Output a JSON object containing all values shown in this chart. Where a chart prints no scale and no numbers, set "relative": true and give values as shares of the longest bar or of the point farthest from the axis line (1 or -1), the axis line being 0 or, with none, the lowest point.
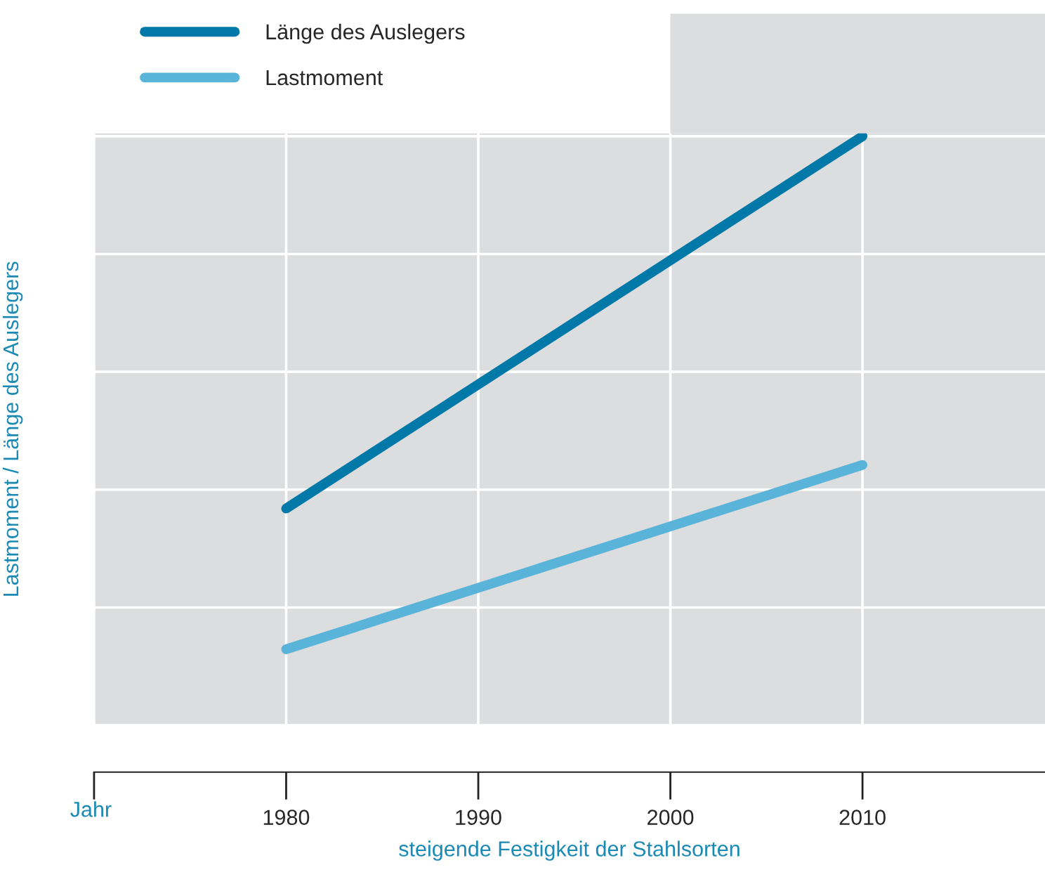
{
  "chart_data": {
    "type": "line",
    "relative": true,
    "xlabel": "steigende Festigkeit der Stahlsorten",
    "ylabel": "Lastmoment / Länge des Auslegers",
    "annotations": [
      "Jahr"
    ],
    "x": [
      1980,
      2010
    ],
    "xlim": [
      1970,
      2019.5
    ],
    "xticks": [
      {
        "value": 1970,
        "label": null
      },
      1980,
      1990,
      2000,
      2010
    ],
    "series": [
      {
        "name": "Länge des Auslegers",
        "color": "#0079a8",
        "values": [
          0.368,
          1
        ]
      },
      {
        "name": "Lastmoment",
        "color": "#5ab4d9",
        "values": [
          0.129,
          0.442
        ]
      }
    ],
    "grid": true,
    "legend": "top left",
    "marker": "none",
    "line_style": "solid"
  }
}
